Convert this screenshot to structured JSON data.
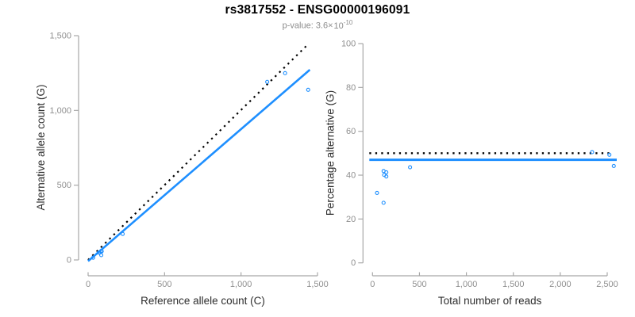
{
  "header": {
    "title": "rs3817552 - ENSG00000196091",
    "subtitle_prefix": "p-value: 3.6",
    "subtitle_times": "×",
    "subtitle_base": "10",
    "subtitle_exponent": "-10"
  },
  "colors": {
    "accent_blue": "#1E8FFF",
    "dotted_black": "#000000",
    "axis_gray": "#a8a8a8",
    "tick_label_gray": "#8f8f8f",
    "axis_title_dark": "#2e2e2e",
    "subtitle_gray": "#8c8c8c"
  },
  "chart_data": [
    {
      "type": "scatter",
      "panel": "left",
      "xlabel": "Reference allele count (C)",
      "ylabel": "Alternative allele count (G)",
      "xlim": [
        0,
        1500
      ],
      "ylim": [
        0,
        1500
      ],
      "xticks": [
        {
          "v": 0,
          "label": "0"
        },
        {
          "v": 500,
          "label": "500"
        },
        {
          "v": 1000,
          "label": "1,000"
        },
        {
          "v": 1500,
          "label": "1,500"
        }
      ],
      "yticks": [
        {
          "v": 0,
          "label": "0"
        },
        {
          "v": 500,
          "label": "500"
        },
        {
          "v": 1000,
          "label": "1,000"
        },
        {
          "v": 1500,
          "label": "1,500"
        }
      ],
      "points": [
        [
          33,
          15
        ],
        [
          69,
          49
        ],
        [
          74,
          50
        ],
        [
          86,
          32
        ],
        [
          86,
          61
        ],
        [
          89,
          58
        ],
        [
          226,
          174
        ],
        [
          1171,
          1191
        ],
        [
          1288,
          1249
        ],
        [
          1439,
          1138
        ]
      ],
      "lines": [
        {
          "name": "identity-line",
          "style": "dotted",
          "color": "#000000",
          "from": [
            0,
            0
          ],
          "to": [
            1432,
            1436
          ]
        },
        {
          "name": "regression-line",
          "style": "solid",
          "color": "#1E8FFF",
          "from": [
            0,
            -8
          ],
          "to": [
            1450,
            1272
          ]
        }
      ]
    },
    {
      "type": "scatter",
      "panel": "right",
      "xlabel": "Total number of reads",
      "ylabel": "Percentage alternative (G)",
      "xlim": [
        0,
        2500
      ],
      "ylim": [
        0,
        100
      ],
      "xticks": [
        {
          "v": 0,
          "label": "0"
        },
        {
          "v": 500,
          "label": "500"
        },
        {
          "v": 1000,
          "label": "1,000"
        },
        {
          "v": 1500,
          "label": "1,500"
        },
        {
          "v": 2000,
          "label": "2,000"
        },
        {
          "v": 2500,
          "label": "2,500"
        }
      ],
      "yticks": [
        {
          "v": 0,
          "label": "0"
        },
        {
          "v": 20,
          "label": "20"
        },
        {
          "v": 40,
          "label": "40"
        },
        {
          "v": 60,
          "label": "60"
        },
        {
          "v": 80,
          "label": "80"
        },
        {
          "v": 100,
          "label": "100"
        }
      ],
      "points": [
        [
          48,
          31.9
        ],
        [
          118,
          27.4
        ],
        [
          118,
          41.9
        ],
        [
          124,
          40.1
        ],
        [
          147,
          39.4
        ],
        [
          147,
          41.3
        ],
        [
          400,
          43.6
        ],
        [
          2339,
          50.5
        ],
        [
          2523,
          49.3
        ],
        [
          2570,
          44.2
        ]
      ],
      "hlines": [
        {
          "name": "expected-line",
          "style": "dotted",
          "color": "#000000",
          "value": 50
        },
        {
          "name": "fitted-line",
          "style": "solid",
          "color": "#1E8FFF",
          "value": 47
        }
      ]
    }
  ]
}
